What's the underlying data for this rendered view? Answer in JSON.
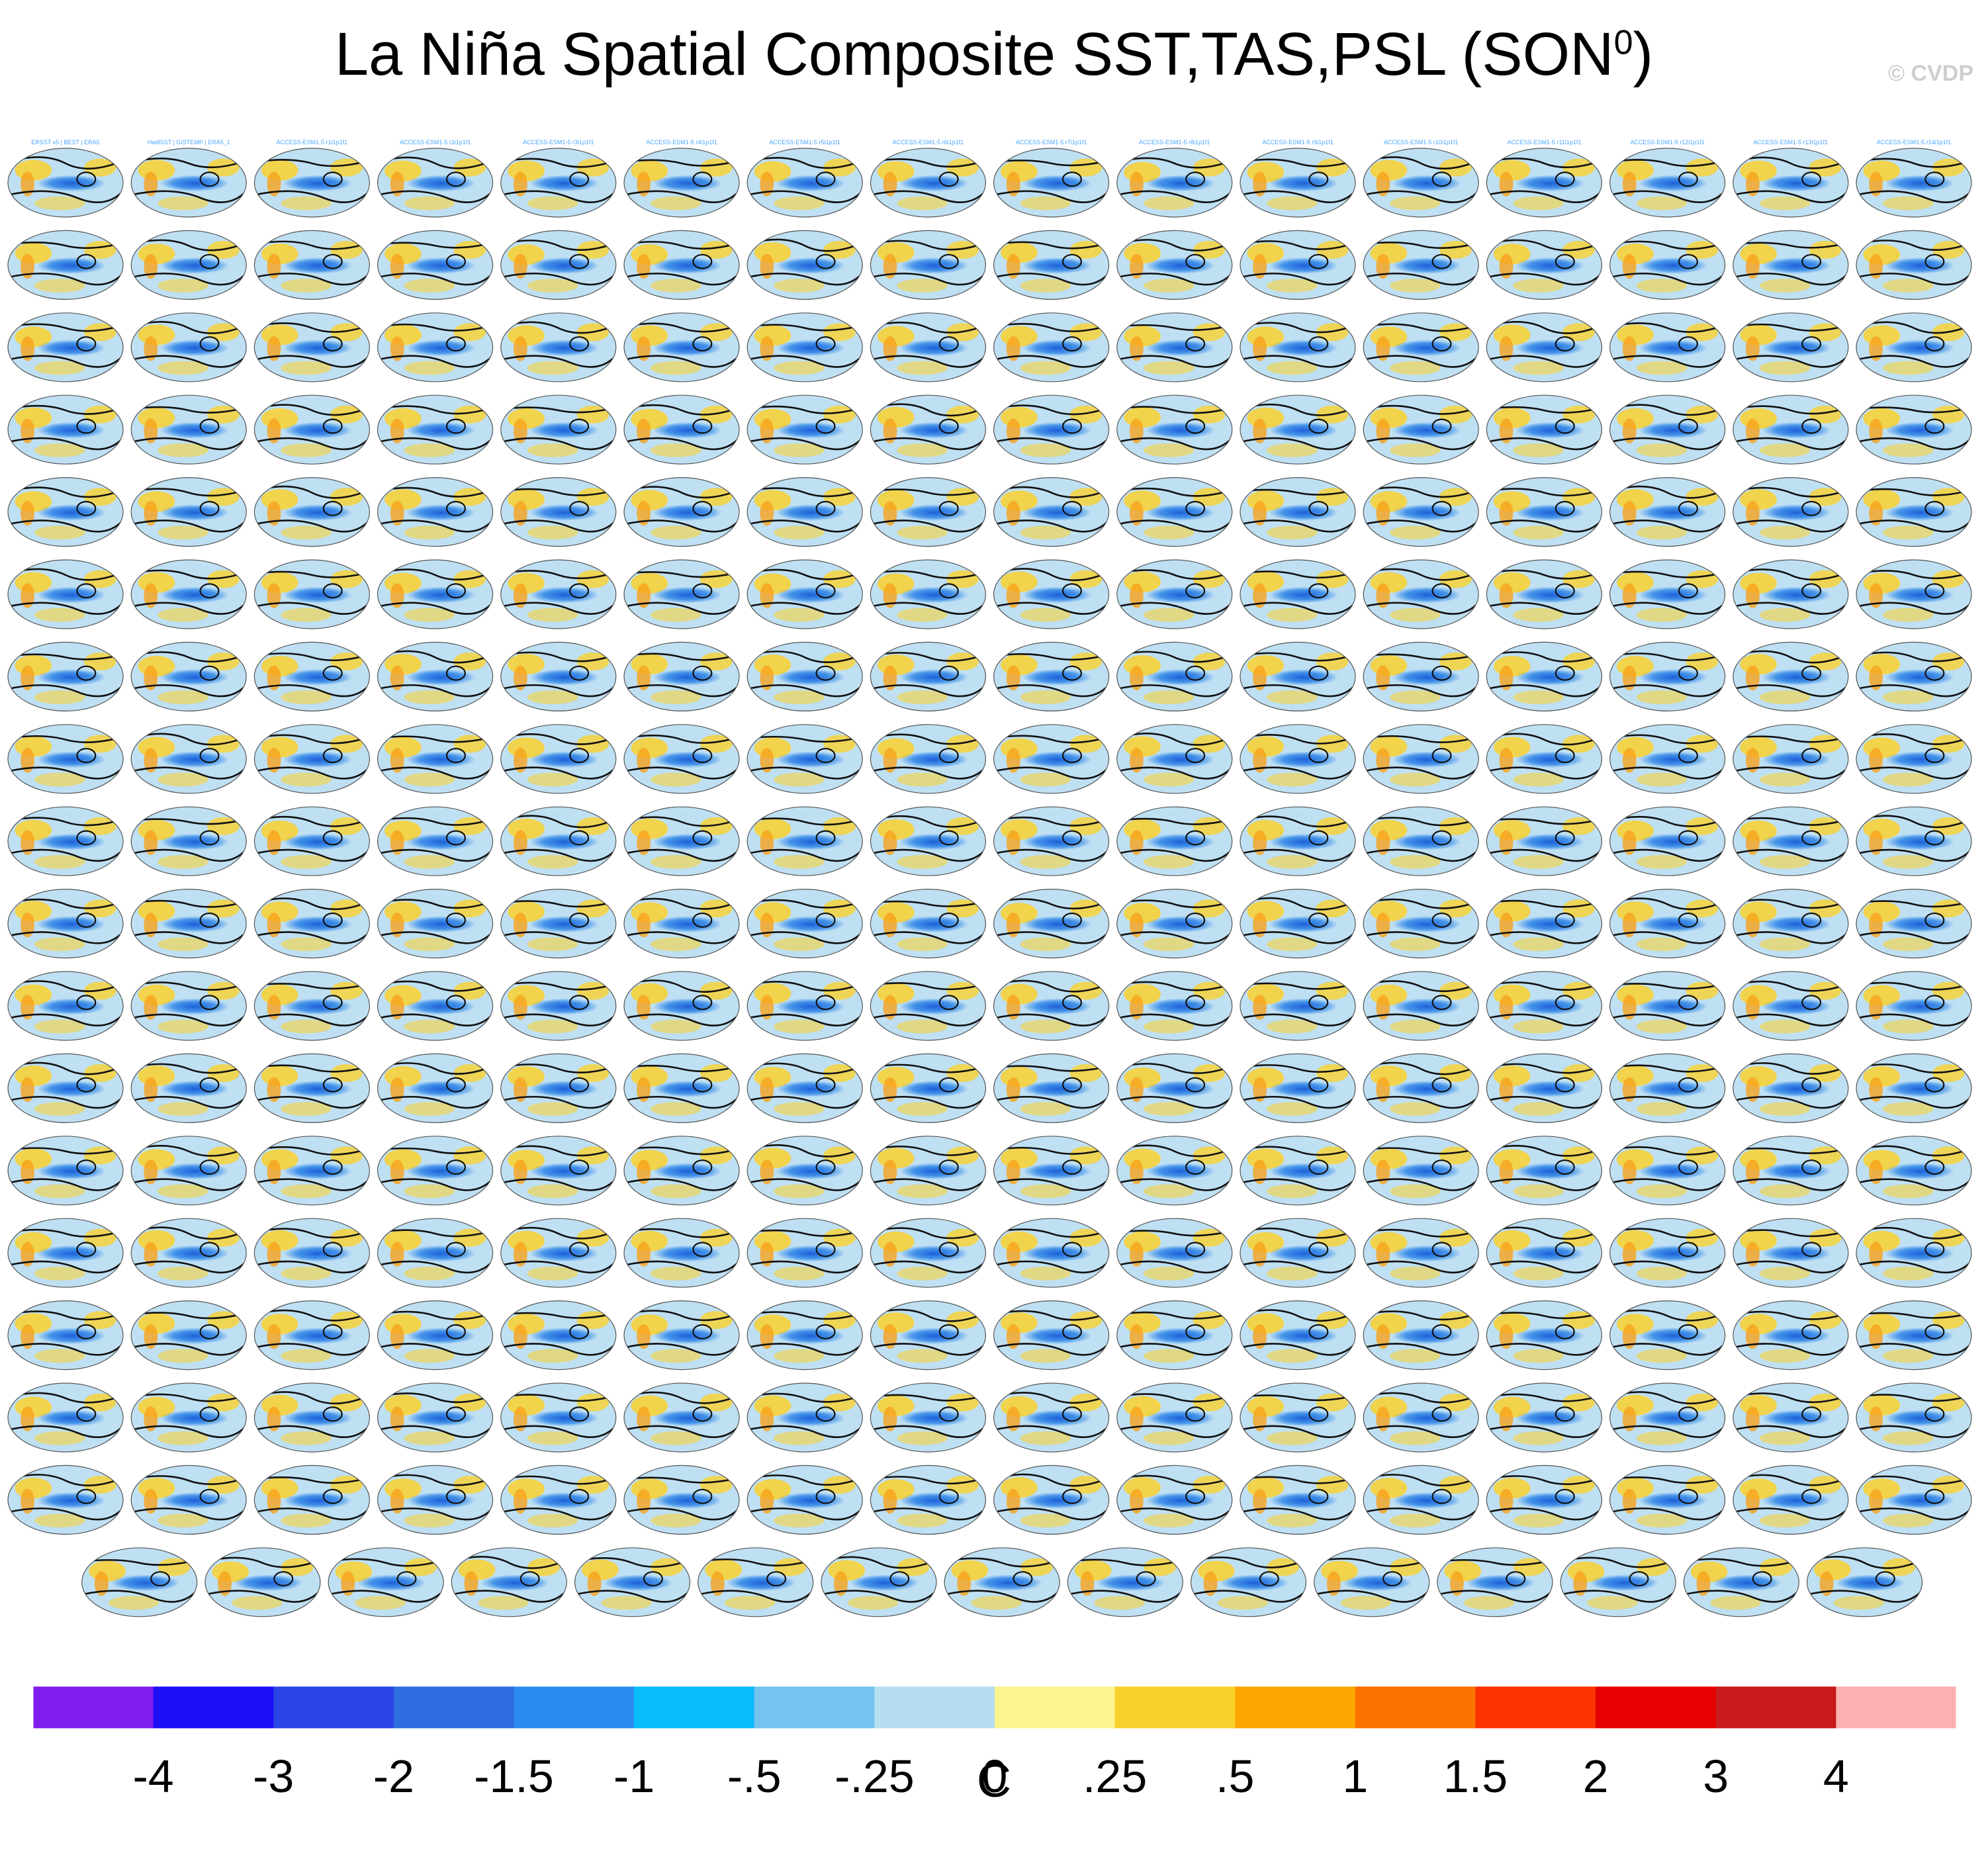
{
  "figure": {
    "title_main": "La Niña Spatial Composite SST,TAS,PSL (SON",
    "title_sup": "0",
    "title_close": ")",
    "watermark": "© CVDP",
    "colorbar_units": "C"
  },
  "colors": {
    "map_bg": "#bfe0f3",
    "pacific_cold": "#2f86e8",
    "pacific_core": "#1e5fd8",
    "warm": "#f6d23a",
    "warm2": "#f7a31b",
    "contour": "#111111",
    "panel_label": "#4aa6ff"
  },
  "chart_data": {
    "type": "heatmap",
    "description_kind": "small-multiple global map composites with colorbar",
    "panels_grid": {
      "rows": 18,
      "cols": 16,
      "last_row_panels": 15
    },
    "panel_labels_first_row": [
      "ERSST v5 | BEST | ERA5",
      "HadISST | GISTEMP | ERA5_1",
      "ACCESS-ESM1-5 r1i1p1f1",
      "ACCESS-ESM1-5 r2i1p1f1",
      "ACCESS-ESM1-5 r3i1p1f1",
      "ACCESS-ESM1-5 r4i1p1f1",
      "ACCESS-ESM1-5 r5i1p1f1",
      "ACCESS-ESM1-5 r6i1p1f1",
      "ACCESS-ESM1-5 r7i1p1f1",
      "ACCESS-ESM1-5 r8i1p1f1",
      "ACCESS-ESM1-5 r9i1p1f1",
      "ACCESS-ESM1-5 r10i1p1f1",
      "ACCESS-ESM1-5 r11i1p1f1",
      "ACCESS-ESM1-5 r12i1p1f1",
      "ACCESS-ESM1-5 r13i1p1f1",
      "ACCESS-ESM1-5 r14i1p1f1"
    ],
    "colorbar": {
      "units": "C",
      "tick_labels": [
        "-4",
        "-3",
        "-2",
        "-1.5",
        "-1",
        "-.5",
        "-.25",
        "0",
        ".25",
        ".5",
        "1",
        "1.5",
        "2",
        "3",
        "4"
      ],
      "bin_colors": [
        "#7f1eee",
        "#1e0ef5",
        "#2a44e6",
        "#2f6ce0",
        "#2a8cf0",
        "#08bdf9",
        "#74c4ef",
        "#b6def1",
        "#fcf48e",
        "#f7d02c",
        "#fba500",
        "#fb7200",
        "#fb3300",
        "#e60000",
        "#c8191c",
        "#fcb0b0"
      ]
    }
  }
}
